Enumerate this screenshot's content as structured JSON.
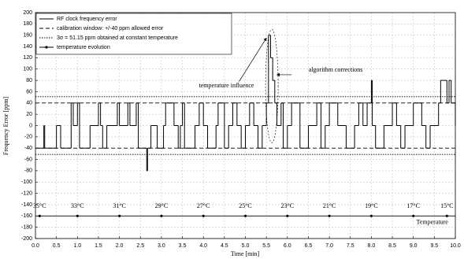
{
  "chart_data": {
    "type": "step",
    "xlabel": "Time [min]",
    "ylabel": "Frequency Error [ppm]",
    "xlim": [
      0,
      10
    ],
    "ylim": [
      -200,
      200
    ],
    "xticks": [
      {
        "value": 0,
        "label": "0.0"
      },
      0.5,
      {
        "value": 1,
        "label": "1.0"
      },
      1.5,
      {
        "value": 2,
        "label": "2.0"
      },
      2.5,
      {
        "value": 3,
        "label": "3.0"
      },
      3.5,
      {
        "value": 4,
        "label": "4.0"
      },
      4.5,
      {
        "value": 5,
        "label": "5.0"
      },
      5.5,
      {
        "value": 6,
        "label": "6.0"
      },
      6.5,
      {
        "value": 7,
        "label": "7.0"
      },
      7.5,
      {
        "value": 8,
        "label": "8.0"
      },
      8.5,
      {
        "value": 9,
        "label": "9.0"
      },
      9.5,
      {
        "value": 10,
        "label": "10.0"
      }
    ],
    "yticks": [
      -200,
      -180,
      -160,
      -140,
      -120,
      -100,
      -80,
      -60,
      -40,
      -20,
      0,
      20,
      40,
      60,
      80,
      100,
      120,
      140,
      160,
      180,
      200
    ],
    "grid": true,
    "legend": "upper left",
    "series": [
      {
        "name": "RF clock frequency error",
        "kind": "step",
        "color": "#000000",
        "x": [
          0,
          0.2,
          0.22,
          0.5,
          0.6,
          0.85,
          0.9,
          1.0,
          1.05,
          1.3,
          1.5,
          1.55,
          1.6,
          1.7,
          1.95,
          2.0,
          2.2,
          2.25,
          2.4,
          2.45,
          2.65,
          2.67,
          2.75,
          2.9,
          3.05,
          3.1,
          3.3,
          3.4,
          3.45,
          3.5,
          3.55,
          3.8,
          3.9,
          4.0,
          4.1,
          4.3,
          4.35,
          4.5,
          4.6,
          4.7,
          4.8,
          4.9,
          5.0,
          5.1,
          5.2,
          5.3,
          5.4,
          5.5,
          5.55,
          5.6,
          5.65,
          5.7,
          5.75,
          5.85,
          5.9,
          6.0,
          6.1,
          6.3,
          6.5,
          6.7,
          6.8,
          6.9,
          7.0,
          7.2,
          7.4,
          7.6,
          7.7,
          7.8,
          7.9,
          8.0,
          8.02,
          8.1,
          8.3,
          8.5,
          8.6,
          8.7,
          8.8,
          9.0,
          9.2,
          9.3,
          9.4,
          9.6,
          9.65,
          9.8,
          9.85,
          9.9,
          10.0
        ],
        "values": [
          -40,
          0,
          -40,
          0,
          -40,
          40,
          0,
          40,
          -40,
          0,
          40,
          0,
          -40,
          0,
          40,
          0,
          40,
          0,
          40,
          -40,
          -80,
          -40,
          0,
          -40,
          0,
          40,
          0,
          -40,
          0,
          40,
          -40,
          0,
          40,
          0,
          -40,
          0,
          40,
          -40,
          0,
          40,
          0,
          -40,
          0,
          40,
          0,
          -40,
          0,
          40,
          160,
          120,
          80,
          40,
          0,
          40,
          -40,
          0,
          40,
          -40,
          0,
          40,
          -40,
          0,
          40,
          0,
          -40,
          0,
          40,
          0,
          40,
          80,
          0,
          -40,
          0,
          40,
          0,
          -40,
          0,
          40,
          0,
          -40,
          0,
          40,
          80,
          40,
          80,
          40,
          0
        ]
      },
      {
        "name": "calibration window: +/-40 ppm allowed error",
        "kind": "hline",
        "style": "dashed",
        "color": "#000000",
        "values": [
          40,
          -40
        ]
      },
      {
        "name": "3σ = 51.15 ppm obtained at constant temperature",
        "kind": "hline",
        "style": "dotted",
        "color": "#000000",
        "values": [
          51.15,
          -51.15
        ]
      },
      {
        "name": "temperature evolution",
        "kind": "marker-line",
        "color": "#000000",
        "x": [
          0.1,
          1.0,
          2.0,
          3.0,
          4.0,
          5.0,
          6.0,
          7.0,
          8.0,
          9.0,
          9.8
        ],
        "values": [
          -160,
          -160,
          -160,
          -160,
          -160,
          -160,
          -160,
          -160,
          -160,
          -160,
          -160
        ],
        "point_labels": [
          "35°C",
          "33°C",
          "31°C",
          "29°C",
          "27°C",
          "25°C",
          "23°C",
          "21°C",
          "19°C",
          "17°C",
          "15°C"
        ]
      }
    ],
    "annotations": [
      "temperature influence",
      "algorithm corrections",
      "Temperature"
    ]
  }
}
